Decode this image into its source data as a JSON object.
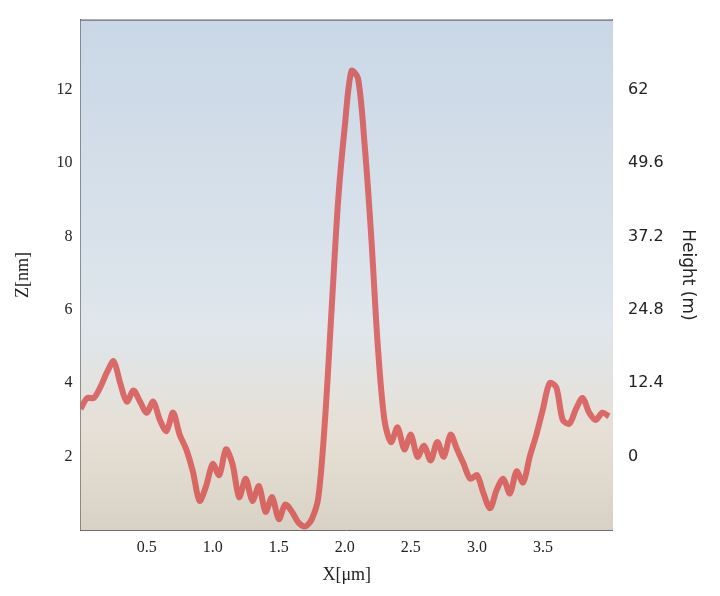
{
  "chart_data": {
    "type": "line",
    "x_label": "X[μm]",
    "y_label": "Z[nm]",
    "y2_label": "Height (m)",
    "x": [
      0,
      0.05,
      0.1,
      0.15,
      0.2,
      0.25,
      0.3,
      0.35,
      0.4,
      0.45,
      0.5,
      0.55,
      0.6,
      0.65,
      0.7,
      0.75,
      0.8,
      0.85,
      0.9,
      0.95,
      1.0,
      1.05,
      1.1,
      1.15,
      1.2,
      1.25,
      1.3,
      1.35,
      1.4,
      1.45,
      1.5,
      1.55,
      1.6,
      1.65,
      1.7,
      1.75,
      1.8,
      1.85,
      1.9,
      1.95,
      2.0,
      2.05,
      2.1,
      2.15,
      2.2,
      2.25,
      2.3,
      2.35,
      2.4,
      2.45,
      2.5,
      2.55,
      2.6,
      2.65,
      2.7,
      2.75,
      2.8,
      2.85,
      2.9,
      2.95,
      3.0,
      3.05,
      3.1,
      3.15,
      3.2,
      3.25,
      3.3,
      3.35,
      3.4,
      3.45,
      3.5,
      3.55,
      3.6,
      3.65,
      3.7,
      3.75,
      3.8,
      3.85,
      3.9,
      3.95,
      4.0
    ],
    "series": [
      {
        "color": "#d63c3c",
        "values": [
          3.3,
          3.6,
          3.6,
          3.9,
          4.3,
          4.6,
          4.0,
          3.5,
          3.8,
          3.5,
          3.2,
          3.5,
          3.0,
          2.7,
          3.2,
          2.6,
          2.2,
          1.6,
          0.8,
          1.2,
          1.8,
          1.5,
          2.2,
          1.8,
          0.9,
          1.4,
          0.8,
          1.2,
          0.5,
          0.9,
          0.3,
          0.7,
          0.5,
          0.2,
          0.1,
          0.3,
          0.9,
          3.0,
          6.0,
          9.0,
          11.0,
          12.5,
          12.3,
          10.5,
          8.0,
          5.0,
          3.0,
          2.4,
          2.8,
          2.2,
          2.6,
          2.0,
          2.3,
          1.9,
          2.4,
          2.0,
          2.6,
          2.2,
          1.8,
          1.4,
          1.5,
          1.0,
          0.6,
          1.1,
          1.4,
          1.0,
          1.6,
          1.3,
          2.0,
          2.6,
          3.3,
          4.0,
          3.9,
          3.0,
          2.9,
          3.3,
          3.6,
          3.2,
          3.0,
          3.2,
          3.1
        ]
      }
    ],
    "xlim": [
      0,
      4.03
    ],
    "xticks": [
      0.5,
      1,
      1.5,
      2,
      2.5,
      3,
      3.5
    ],
    "ylim": [
      0,
      13.9
    ],
    "yticks": [
      2,
      4,
      6,
      8,
      10,
      12
    ],
    "y2lim": [
      -12.4,
      73.8
    ],
    "y2ticks": [
      0,
      12.4,
      24.8,
      37.2,
      49.6,
      62
    ],
    "grid": false
  }
}
